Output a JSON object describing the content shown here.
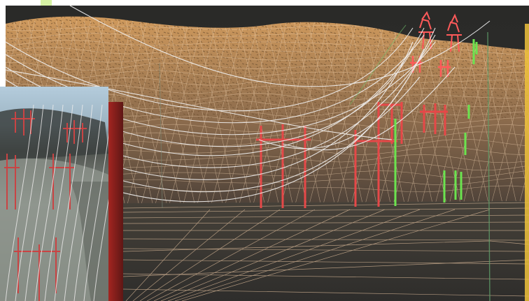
{
  "scene": {
    "subject": "3d-wireframe-terrain-power-line-visualization",
    "elements": {
      "terrain": "wireframe-hillside",
      "towers": "transmission-towers",
      "poles": "h-frame-utility-poles",
      "conductors": "overhead-power-lines",
      "markers": "vertical-marker-lines",
      "inset": "photo-inset-of-real-hillside"
    }
  },
  "colors": {
    "background": "#2f2f2d",
    "terrain_fill": "#c4935a",
    "terrain_mesh": "#f0d2b0",
    "tower": "#e24c4c",
    "conductor": "#eeeeee",
    "marker": "#66e04c",
    "accent_green": "#d6f2a5",
    "accent_yellow": "#f0c23b",
    "inset_sky": "#a9c7db",
    "inset_rock": "#9ba39b",
    "inset_band": "#8b1d1a"
  }
}
